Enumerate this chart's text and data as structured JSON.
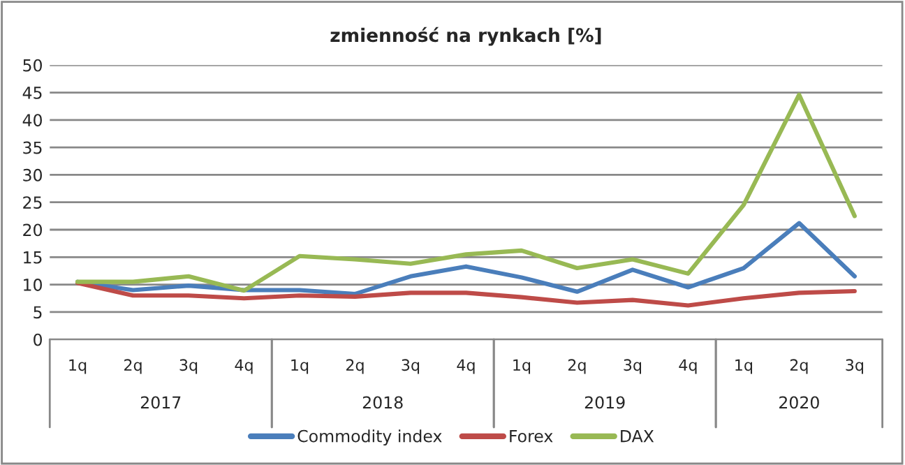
{
  "chart_data": {
    "type": "line",
    "title": "zmienność na rynkach [%]",
    "categories": [
      "1q",
      "2q",
      "3q",
      "4q",
      "1q",
      "2q",
      "3q",
      "4q",
      "1q",
      "2q",
      "3q",
      "4q",
      "1q",
      "2q",
      "3q"
    ],
    "annotations": [
      "2017",
      "2018",
      "2019",
      "2020"
    ],
    "series": [
      {
        "name": "Commodity index",
        "color": "#4a7ebb",
        "values": [
          10.5,
          9,
          9.8,
          9,
          9,
          8.3,
          11.5,
          13.3,
          11.3,
          8.7,
          12.7,
          9.5,
          13,
          21.2,
          11.5
        ]
      },
      {
        "name": "Forex",
        "color": "#be4b48",
        "values": [
          10.3,
          8,
          8,
          7.5,
          8,
          7.8,
          8.5,
          8.5,
          7.7,
          6.7,
          7.2,
          6.2,
          7.5,
          8.5,
          8.8
        ]
      },
      {
        "name": "DAX",
        "color": "#98b954",
        "values": [
          10.5,
          10.5,
          11.5,
          8.9,
          15.2,
          14.6,
          13.8,
          15.5,
          16.2,
          13,
          14.6,
          12,
          24.5,
          44.6,
          22.5
        ]
      }
    ],
    "ylim": [
      0,
      50
    ],
    "yticks": [
      0,
      5,
      10,
      15,
      20,
      25,
      30,
      35,
      40,
      45,
      50
    ],
    "grid": "y",
    "legend": "bottom",
    "marker": "none",
    "line_style": "solid"
  }
}
